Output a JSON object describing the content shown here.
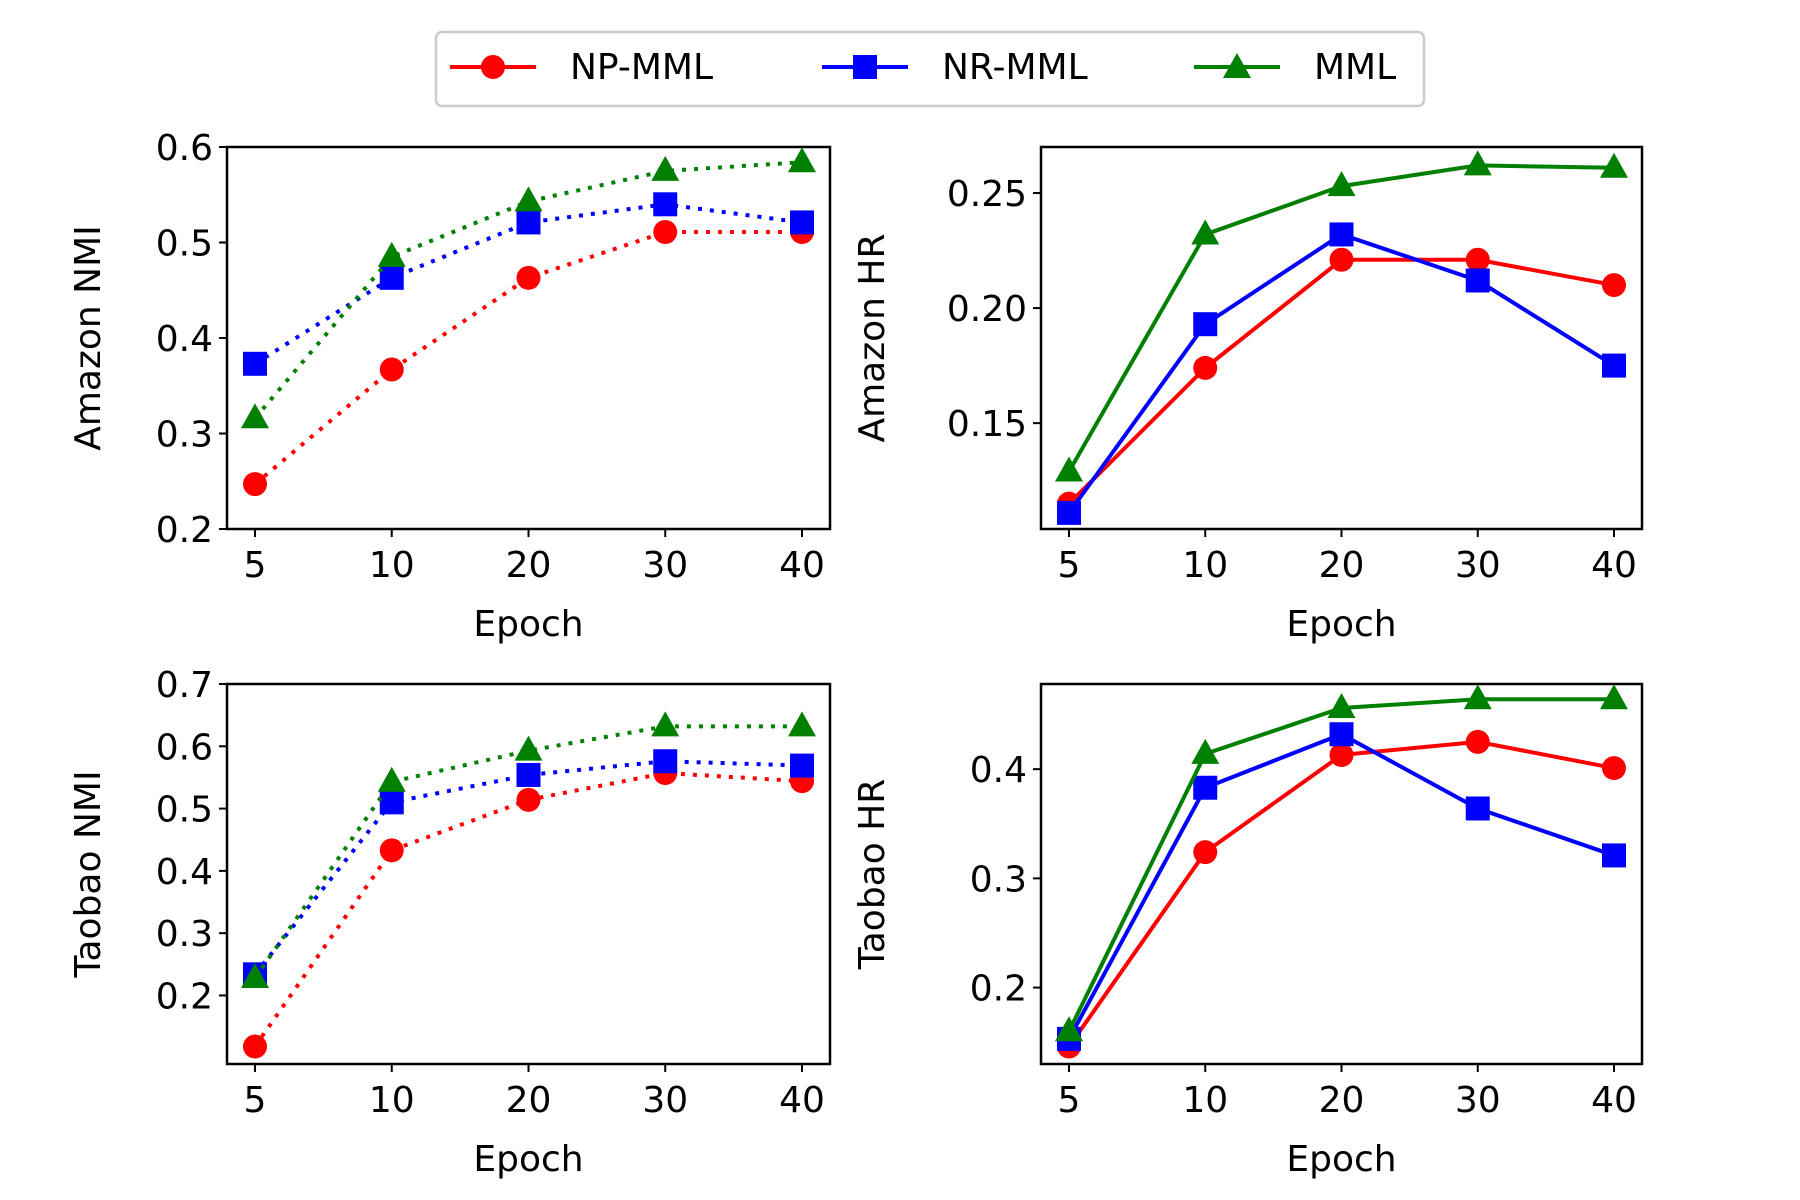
{
  "legend": {
    "entries": [
      {
        "name": "NP-MML",
        "color": "#ff0000",
        "marker": "circle"
      },
      {
        "name": "NR-MML",
        "color": "#0000ff",
        "marker": "square"
      },
      {
        "name": "MML",
        "color": "#008000",
        "marker": "triangle"
      }
    ]
  },
  "chart_data": [
    {
      "id": "amazon-nmi",
      "type": "line",
      "line_style": "dotted",
      "categories": [
        "5",
        "10",
        "20",
        "30",
        "40"
      ],
      "xlabel": "Epoch",
      "ylabel": "Amazon NMI",
      "ylim": [
        0.2,
        0.6
      ],
      "yticks": [
        0.2,
        0.3,
        0.4,
        0.5,
        0.6
      ],
      "ytick_labels": [
        "0.2",
        "0.3",
        "0.4",
        "0.5",
        "0.6"
      ],
      "series": [
        {
          "name": "NP-MML",
          "values": [
            0.247,
            0.367,
            0.463,
            0.511,
            0.511
          ]
        },
        {
          "name": "NR-MML",
          "values": [
            0.373,
            0.463,
            0.521,
            0.54,
            0.521
          ]
        },
        {
          "name": "MML",
          "values": [
            0.316,
            0.485,
            0.543,
            0.575,
            0.584
          ]
        }
      ]
    },
    {
      "id": "amazon-hr",
      "type": "line",
      "line_style": "solid",
      "categories": [
        "5",
        "10",
        "20",
        "30",
        "40"
      ],
      "xlabel": "Epoch",
      "ylabel": "Amazon HR",
      "ylim": [
        0.104,
        0.27
      ],
      "yticks": [
        0.15,
        0.2,
        0.25
      ],
      "ytick_labels": [
        "0.15",
        "0.20",
        "0.25"
      ],
      "series": [
        {
          "name": "NP-MML",
          "values": [
            0.115,
            0.174,
            0.221,
            0.221,
            0.21
          ]
        },
        {
          "name": "NR-MML",
          "values": [
            0.111,
            0.193,
            0.232,
            0.212,
            0.175
          ]
        },
        {
          "name": "MML",
          "values": [
            0.129,
            0.232,
            0.253,
            0.262,
            0.261
          ]
        }
      ]
    },
    {
      "id": "taobao-nmi",
      "type": "line",
      "line_style": "dotted",
      "categories": [
        "5",
        "10",
        "20",
        "30",
        "40"
      ],
      "xlabel": "Epoch",
      "ylabel": "Taobao NMI",
      "ylim": [
        0.09,
        0.7
      ],
      "yticks": [
        0.2,
        0.3,
        0.4,
        0.5,
        0.6,
        0.7
      ],
      "ytick_labels": [
        "0.2",
        "0.3",
        "0.4",
        "0.5",
        "0.6",
        "0.7"
      ],
      "series": [
        {
          "name": "NP-MML",
          "values": [
            0.118,
            0.433,
            0.514,
            0.557,
            0.544
          ]
        },
        {
          "name": "NR-MML",
          "values": [
            0.234,
            0.51,
            0.554,
            0.576,
            0.569
          ]
        },
        {
          "name": "MML",
          "values": [
            0.228,
            0.543,
            0.593,
            0.632,
            0.632
          ]
        }
      ]
    },
    {
      "id": "taobao-hr",
      "type": "line",
      "line_style": "solid",
      "categories": [
        "5",
        "10",
        "20",
        "30",
        "40"
      ],
      "xlabel": "Epoch",
      "ylabel": "Taobao HR",
      "ylim": [
        0.13,
        0.478
      ],
      "yticks": [
        0.2,
        0.3,
        0.4
      ],
      "ytick_labels": [
        "0.2",
        "0.3",
        "0.4"
      ],
      "series": [
        {
          "name": "NP-MML",
          "values": [
            0.146,
            0.324,
            0.413,
            0.425,
            0.401
          ]
        },
        {
          "name": "NR-MML",
          "values": [
            0.153,
            0.383,
            0.432,
            0.364,
            0.321
          ]
        },
        {
          "name": "MML",
          "values": [
            0.16,
            0.414,
            0.456,
            0.464,
            0.464
          ]
        }
      ]
    }
  ]
}
